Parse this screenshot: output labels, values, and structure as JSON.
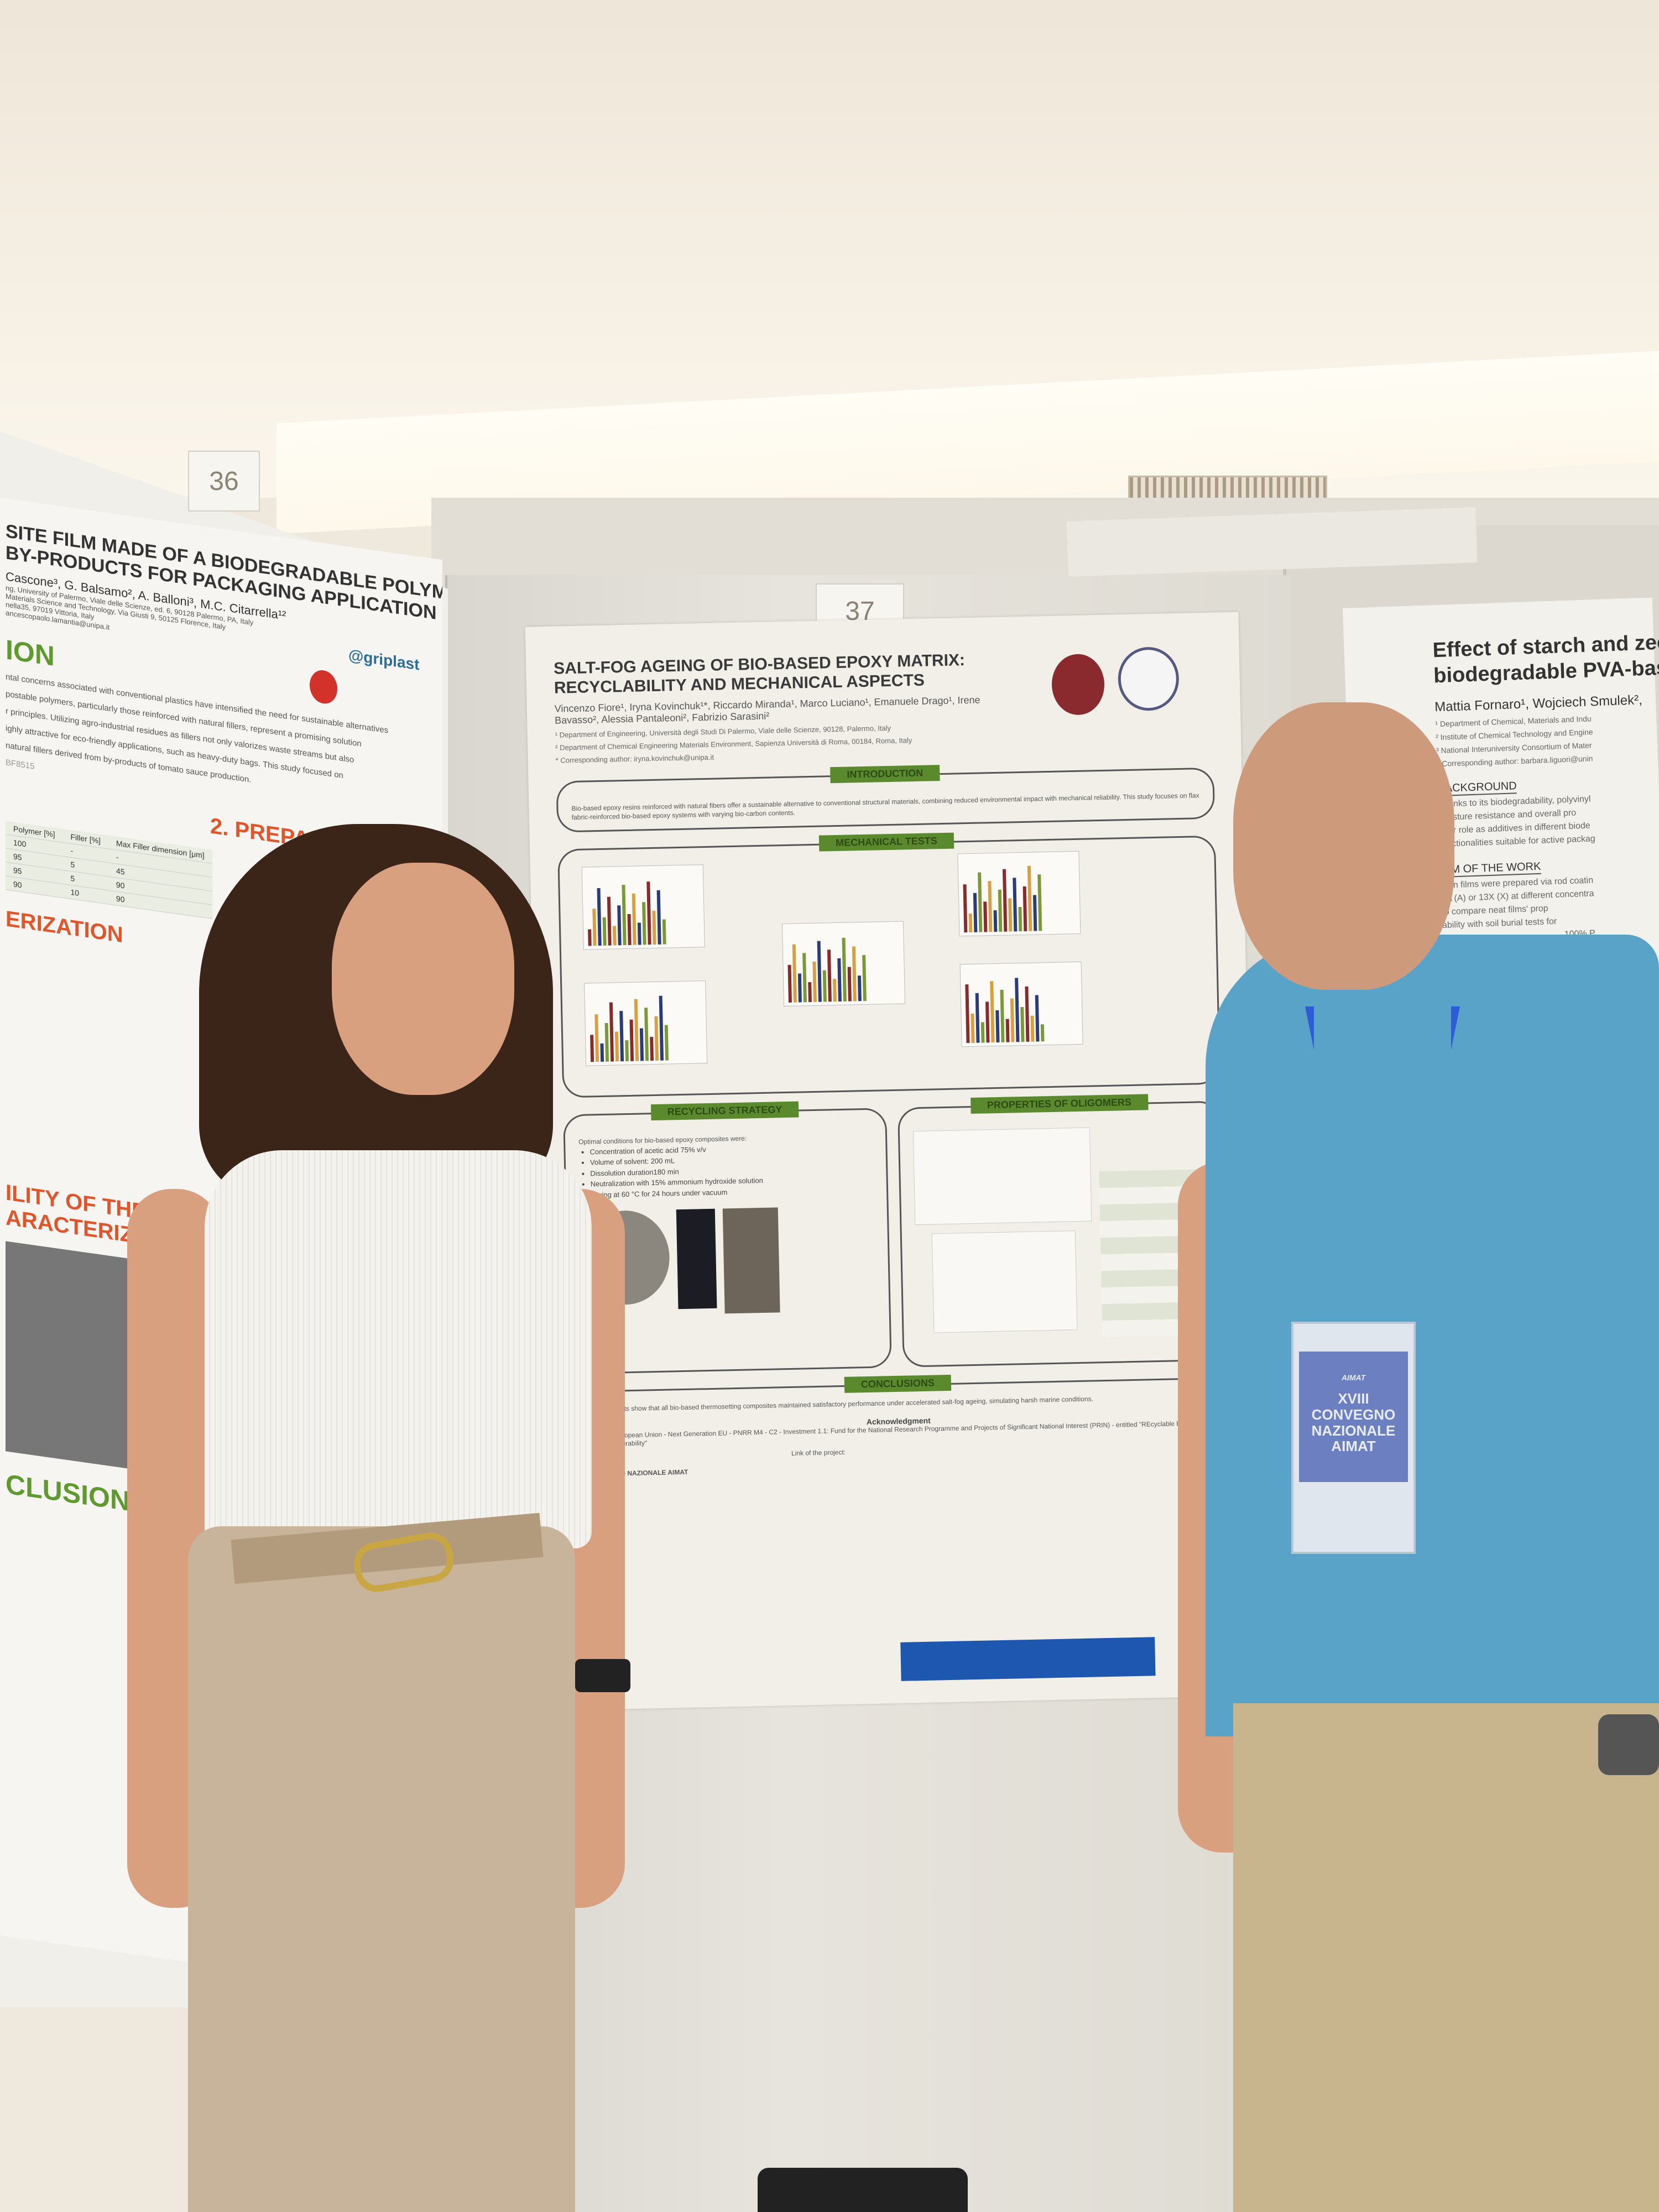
{
  "scene": {
    "poster_numbers": [
      "36",
      "37"
    ]
  },
  "poster_center": {
    "title": "SALT-FOG AGEING OF BIO-BASED EPOXY MATRIX: RECYCLABILITY AND MECHANICAL ASPECTS",
    "authors": "Vincenzo Fiore¹, Iryna Kovinchuk¹*, Riccardo Miranda¹, Marco Luciano¹, Emanuele Drago¹, Irene Bavasso², Alessia Pantaleoni², Fabrizio Sarasini²",
    "affiliations": [
      "¹ Department of Engineering, Università degli Studi Di Palermo, Viale delle Scienze, 90128, Palermo, Italy",
      "² Department of Chemical Engineering Materials Environment, Sapienza Università di Roma, 00184, Roma, Italy"
    ],
    "corresponding": "* Corresponding author: iryna.kovinchuk@unipa.it",
    "sections": {
      "introduction": "INTRODUCTION",
      "mechanical": "MECHANICAL TESTS",
      "recycling": "RECYCLING STRATEGY",
      "oligomers": "PROPERTIES OF OLIGOMERS",
      "conclusions": "CONCLUSIONS"
    },
    "intro_text": "Bio-based epoxy resins reinforced with natural fibers offer a sustainable alternative to conventional structural materials, combining reduced environmental impact with mechanical reliability. This study focuses on flax fabric-reinforced bio-based epoxy systems with varying bio-carbon contents.",
    "recycling_intro": "Optimal conditions for bio-based epoxy composites were:",
    "recycling_bullets": [
      "Concentration of acetic acid 75% v/v",
      "Volume of solvent: 200 mL",
      "Dissolution duration180 min",
      "Neutralization with 15% ammonium hydroxide solution",
      "Drying at 60 °C for 24 hours under vacuum"
    ],
    "conclusions_text": "Experimental results show that all bio-based thermosetting composites maintained satisfactory performance under accelerated salt-fog ageing, simulating harsh marine conditions.",
    "acknowledgment_title": "Acknowledgment",
    "acknowledgment_text": "Funded by the European Union - Next Generation EU - PNRR M4 - C2 - Investment 1.1: Fund for the National Research Programme and Projects of Significant National Interest (PRIN) - entitled \"REcyclable biocomposites With eNhanced Durability\"",
    "project_link_label": "Link of the project:",
    "event": "XVIII CONVEGNO NAZIONALE AIMAT"
  },
  "poster_left": {
    "title_line1": "SITE FILM MADE OF A BIODEGRADABLE POLYMER",
    "title_line2": "BY-PRODUCTS FOR PACKAGING APPLICATION",
    "authors": "Cascone³, G. Balsamo², A. Balloni³, M.C. Citarrella¹²",
    "affiliations": [
      "ng, University of Palermo, Viale delle Scienze, ed. 6, 90128 Palermo, PA, Italy",
      "Materials Science and Technology, Via Giusti 9, 50125 Florence, Italy",
      "nella35, 97019 Vittoria, Italy",
      "ancescopaolo.lamantia@unipa.it"
    ],
    "logo_text": "@griplast",
    "section1": "ION",
    "section1_text": [
      "ntal concerns associated with conventional plastics have intensified the need for sustainable alternatives",
      "postable polymers, particularly those reinforced with natural fillers, represent a promising solution",
      "r principles. Utilizing agro-industrial residues as fillers not only valorizes waste streams but also",
      "ighly attractive for eco-friendly applications, such as heavy-duty bags. This study focused on",
      "natural fillers derived from by-products of tomato sauce production."
    ],
    "material_label": "BF8515",
    "section2": "2. PREPARATION",
    "table": {
      "headers": [
        "Polymer [%]",
        "Filler [%]",
        "Max Filler dimension [μm]"
      ],
      "rows": [
        [
          "100",
          "-",
          "-"
        ],
        [
          "95",
          "5",
          "45"
        ],
        [
          "95",
          "5",
          "90"
        ],
        [
          "90",
          "10",
          "90"
        ]
      ]
    },
    "section3": "ERIZATION",
    "section4": "ILITY OF THE COMPOS",
    "section5": "ARACTERIZATION",
    "section6": "CLUSIONS"
  },
  "poster_right": {
    "title_line1": "Effect of starch and zeo",
    "title_line2": "biodegradable PVA-bas",
    "authors": "Mattia Fornaro¹, Wojciech Smulek²,",
    "affiliations": [
      "¹ Department of Chemical, Materials and Indu",
      "² Institute of Chemical Technology and Engine",
      "³ National Interuniversity Consortium of Mater"
    ],
    "corresponding": "* Corresponding author: barbara.liguori@unin",
    "background_head": "BACKGROUND",
    "background_text": [
      "Thanks to its biodegradability, polyvinyl",
      "moisture resistance and overall pro",
      "their role as additives in different biode",
      "functionalities suitable for active packag"
    ],
    "aim_head": "AIM OF THE WORK",
    "aim_text": [
      "Thin films were prepared via rod coatin",
      "4A (A) or 13X (X) at different concentra",
      "to compare neat films' prop",
      "ability with soil burial tests for"
    ],
    "fragment": "100% P"
  },
  "badge": {
    "org": "AIMAT",
    "title": "XVIII CONVEGNO NAZIONALE AIMAT"
  },
  "colors": {
    "section_header_green": "#5b8a2e",
    "shirt_blue": "#5aa3c8",
    "lanyard_blue": "#2e5bd6",
    "eu_banner_blue": "#1d57b0"
  }
}
